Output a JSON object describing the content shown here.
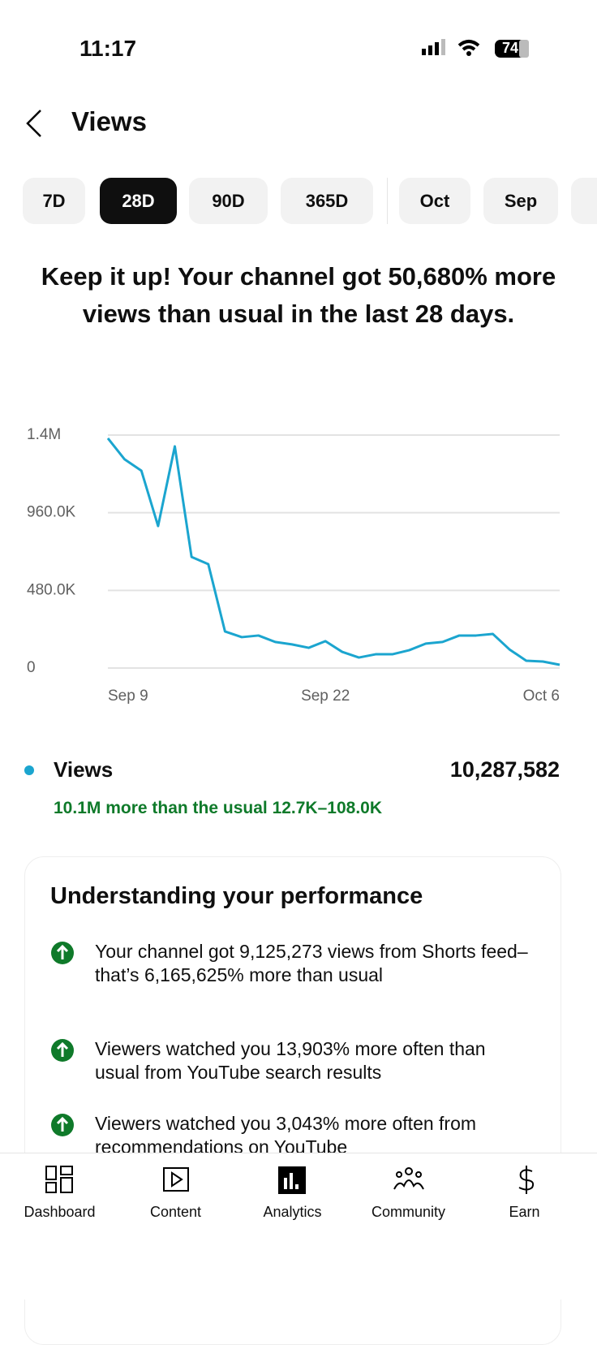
{
  "status_bar": {
    "time": "11:17",
    "battery": "74"
  },
  "header": {
    "title": "Views"
  },
  "tabs": [
    {
      "label": "7D"
    },
    {
      "label": "28D",
      "selected": true
    },
    {
      "label": "90D"
    },
    {
      "label": "365D"
    },
    {
      "label": "Oct"
    },
    {
      "label": "Sep"
    }
  ],
  "headline": "Keep it up! Your channel got 50,680% more views than usual in the last 28 days.",
  "chart_data": {
    "type": "line",
    "categories": [
      "Sep 9",
      null,
      null,
      null,
      null,
      null,
      null,
      null,
      null,
      null,
      null,
      null,
      null,
      "Sep 22",
      null,
      null,
      null,
      null,
      null,
      null,
      null,
      null,
      null,
      null,
      null,
      null,
      null,
      "Oct 6"
    ],
    "series": [
      {
        "name": "Views",
        "color": "#1ba5cf",
        "values": [
          1420000,
          1290000,
          1220000,
          878000,
          1370000,
          687000,
          642000,
          226000,
          191000,
          201000,
          161000,
          146000,
          125000,
          166000,
          100000,
          65000,
          85000,
          85000,
          110000,
          151000,
          161000,
          201000,
          201000,
          211000,
          115000,
          45000,
          40000,
          20000
        ]
      }
    ],
    "ylim": [
      0,
      1440000
    ],
    "yticks": [
      0,
      {
        "value": 480000,
        "label": "480.0K"
      },
      {
        "value": 960000,
        "label": "960.0K"
      },
      {
        "value": 1440000,
        "label": "1.4M"
      }
    ],
    "grid": true
  },
  "summary": {
    "name": "Views",
    "total": "10,287,582",
    "comparison": "10.1M more than the usual 12.7K–108.0K"
  },
  "card": {
    "title": "Understanding your performance",
    "items": [
      "Your channel got 9,125,273 views from Shorts feed–that’s 6,165,625% more than usual",
      "Viewers watched you 13,903% more often than usual from YouTube search results",
      "Viewers watched you 3,043% more often from recommendations on YouTube"
    ]
  },
  "nav": [
    "Dashboard",
    "Content",
    "Analytics",
    "Community",
    "Earn"
  ]
}
